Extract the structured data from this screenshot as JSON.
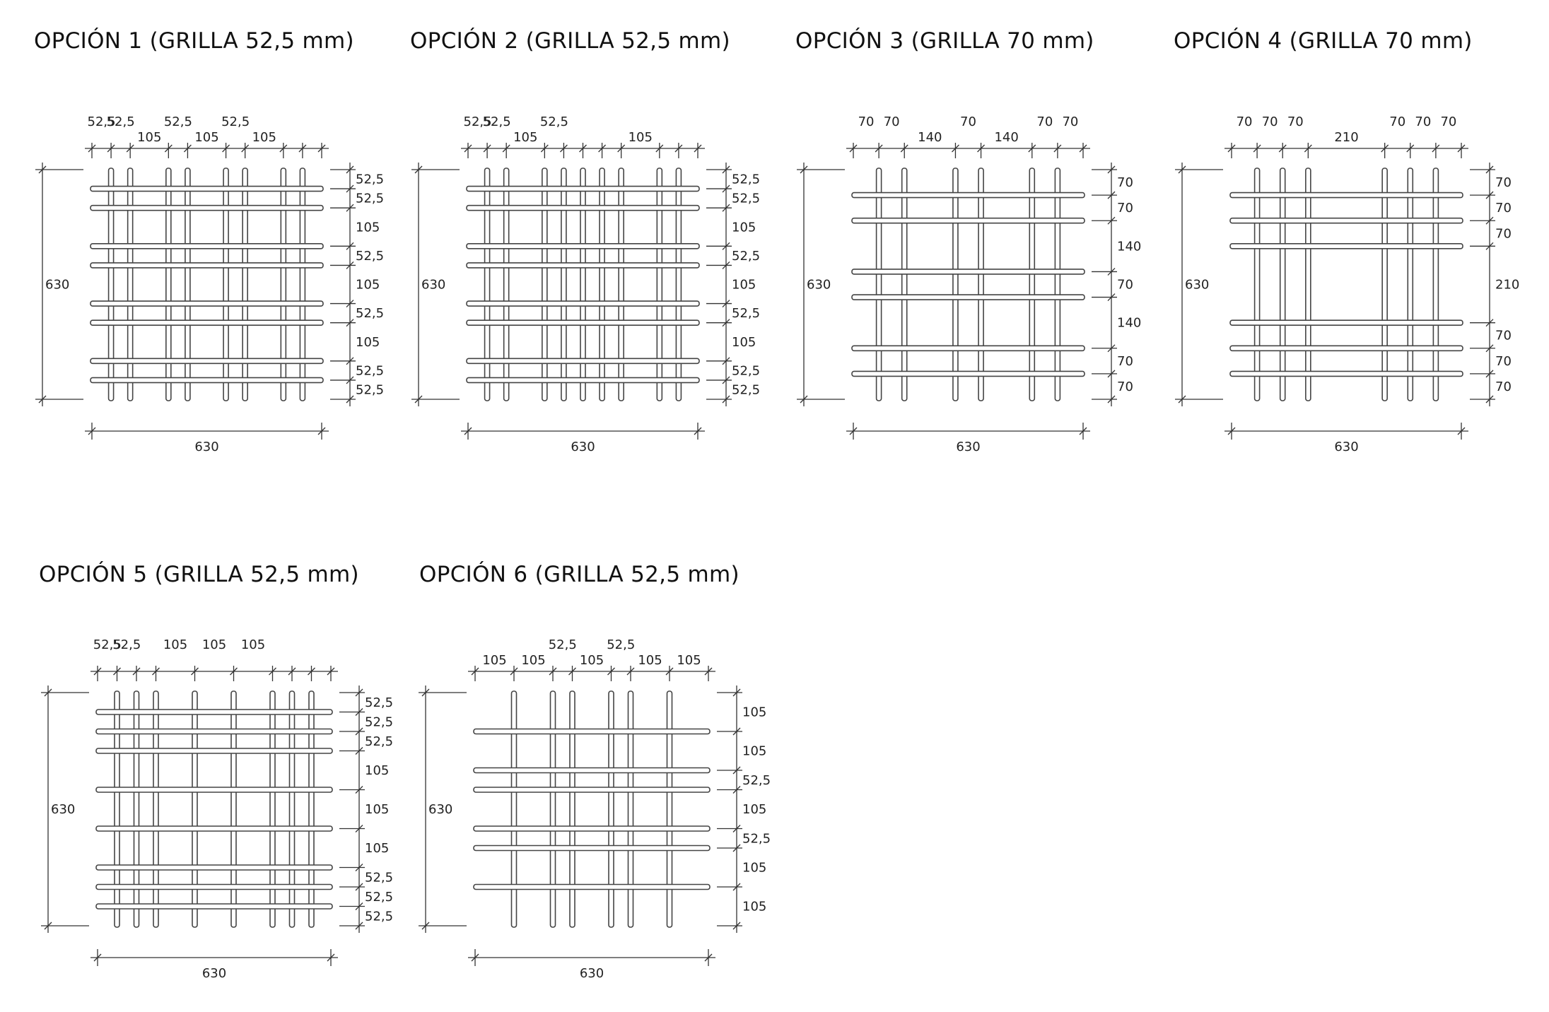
{
  "panels": [
    {
      "title": "OPCIÓN 1 (GRILLA 52,5 mm)",
      "total": "630",
      "h_bars": [
        52.5,
        105,
        210,
        262.5,
        367.5,
        420,
        525,
        577.5
      ],
      "v_bars": [
        52.5,
        105,
        210,
        262.5,
        367.5,
        420,
        525,
        577.5
      ],
      "top_dims": [
        {
          "label": "52,5",
          "row": 0
        },
        {
          "label": "52,5",
          "row": 0
        },
        {
          "label": "52,5",
          "row": 0
        },
        {
          "label": "52,5",
          "row": 0
        },
        {
          "label": "105",
          "row": 1
        },
        {
          "label": "105",
          "row": 1
        },
        {
          "label": "105",
          "row": 1
        }
      ],
      "right_dims": [
        "52,5",
        "52,5",
        "105",
        "52,5",
        "105",
        "52,5",
        "105",
        "52,5",
        "52,5"
      ]
    },
    {
      "title": "OPCIÓN 2 (GRILLA 52,5 mm)",
      "total": "630",
      "h_bars": [
        52.5,
        105,
        210,
        262.5,
        367.5,
        420,
        525,
        577.5
      ],
      "v_bars": [
        52.5,
        105,
        210,
        262.5,
        315,
        367.5,
        420,
        525,
        577.5
      ],
      "top_dims": [
        {
          "label": "52,5",
          "row": 0
        },
        {
          "label": "52,5",
          "row": 0
        },
        {
          "label": "52,5",
          "row": 0
        },
        {
          "label": "105",
          "row": 1
        },
        {
          "label": "105",
          "row": 1
        }
      ],
      "right_dims": [
        "52,5",
        "52,5",
        "105",
        "52,5",
        "105",
        "52,5",
        "105",
        "52,5",
        "52,5"
      ]
    },
    {
      "title": "OPCIÓN 3 (GRILLA 70 mm)",
      "total": "630",
      "h_bars": [
        70,
        140,
        280,
        350,
        490,
        560
      ],
      "v_bars": [
        70,
        140,
        280,
        350,
        490,
        560
      ],
      "top_dims": [
        {
          "label": "70",
          "row": 0
        },
        {
          "label": "70",
          "row": 0
        },
        {
          "label": "70",
          "row": 0
        },
        {
          "label": "70",
          "row": 0
        },
        {
          "label": "70",
          "row": 0
        },
        {
          "label": "140",
          "row": 1
        },
        {
          "label": "140",
          "row": 1
        }
      ],
      "right_dims": [
        "70",
        "70",
        "140",
        "70",
        "140",
        "70",
        "70"
      ]
    },
    {
      "title": "OPCIÓN 4 (GRILLA 70 mm)",
      "total": "630",
      "h_bars": [
        70,
        140,
        210,
        420,
        490,
        560
      ],
      "v_bars": [
        70,
        140,
        210,
        420,
        490,
        560
      ],
      "top_dims": [
        {
          "label": "70",
          "row": 0
        },
        {
          "label": "70",
          "row": 0
        },
        {
          "label": "70",
          "row": 0
        },
        {
          "label": "70",
          "row": 0
        },
        {
          "label": "70",
          "row": 0
        },
        {
          "label": "70",
          "row": 0
        },
        {
          "label": "210",
          "row": 1
        }
      ],
      "right_dims": [
        "70",
        "70",
        "70",
        "210",
        "70",
        "70",
        "70"
      ]
    },
    {
      "title": "OPCIÓN 5 (GRILLA 52,5 mm)",
      "total": "630",
      "h_bars": [
        52.5,
        105,
        157.5,
        262.5,
        367.5,
        472.5,
        525,
        577.5
      ],
      "v_bars": [
        52.5,
        105,
        157.5,
        262.5,
        367.5,
        472.5,
        525,
        577.5
      ],
      "top_dims": [
        {
          "label": "52,5",
          "row": 0
        },
        {
          "label": "105",
          "row": 0
        },
        {
          "label": "105",
          "row": 0
        },
        {
          "label": "105",
          "row": 0
        },
        {
          "label": "52,5",
          "row": 0
        }
      ],
      "right_dims": [
        "52,5",
        "52,5",
        "52,5",
        "105",
        "105",
        "105",
        "52,5",
        "52,5",
        "52,5"
      ]
    },
    {
      "title": "OPCIÓN 6 (GRILLA 52,5 mm)",
      "total": "630",
      "h_bars": [
        105,
        210,
        262.5,
        367.5,
        420,
        525
      ],
      "v_bars": [
        105,
        210,
        262.5,
        367.5,
        420,
        525
      ],
      "top_dims": [
        {
          "label": "52,5",
          "row": 0
        },
        {
          "label": "52,5",
          "row": 0
        },
        {
          "label": "105",
          "row": 1
        },
        {
          "label": "105",
          "row": 1
        },
        {
          "label": "105",
          "row": 1
        },
        {
          "label": "105",
          "row": 1
        },
        {
          "label": "105",
          "row": 1
        }
      ],
      "right_dims": [
        "105",
        "105",
        "52,5",
        "105",
        "52,5",
        "105",
        "105"
      ]
    }
  ]
}
